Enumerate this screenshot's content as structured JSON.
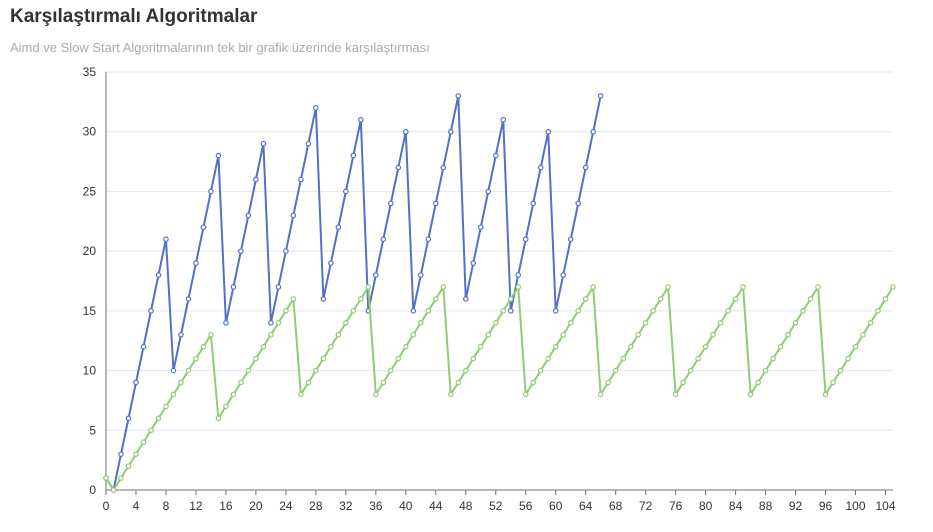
{
  "chart_data": {
    "type": "line",
    "title": "Karşılaştırmalı Algoritmalar",
    "subtitle": "Aimd ve Slow Start Algoritmalarının tek bir grafik üzerinde karşılaştırması",
    "xlabel": "",
    "ylabel": "",
    "xlim": [
      0,
      105
    ],
    "ylim": [
      0,
      35
    ],
    "y_ticks": [
      0,
      5,
      10,
      15,
      20,
      25,
      30,
      35
    ],
    "x_ticks": [
      0,
      4,
      8,
      12,
      16,
      20,
      24,
      28,
      32,
      36,
      40,
      44,
      48,
      52,
      56,
      60,
      64,
      68,
      72,
      76,
      80,
      84,
      88,
      92,
      96,
      100,
      104
    ],
    "grid": true,
    "legend": "none",
    "series": [
      {
        "color": "#5470c6",
        "x": [
          0,
          1,
          2,
          3,
          4,
          5,
          6,
          7,
          8,
          9,
          10,
          11,
          12,
          13,
          14,
          15,
          16,
          17,
          18,
          19,
          20,
          21,
          22,
          23,
          24,
          25,
          26,
          27,
          28,
          29,
          30,
          31,
          32,
          33,
          34,
          35,
          36,
          37,
          38,
          39,
          40,
          41,
          42,
          43,
          44,
          45,
          46,
          47,
          48,
          49,
          50,
          51,
          52,
          53,
          54,
          55,
          56,
          57,
          58,
          59,
          60,
          61,
          62,
          63,
          64,
          65,
          66
        ],
        "values": [
          1,
          0,
          3,
          6,
          9,
          12,
          15,
          18,
          21,
          10,
          13,
          16,
          19,
          22,
          25,
          28,
          14,
          17,
          20,
          23,
          26,
          29,
          14,
          17,
          20,
          23,
          26,
          29,
          32,
          16,
          19,
          22,
          25,
          28,
          31,
          15,
          18,
          21,
          24,
          27,
          30,
          15,
          18,
          21,
          24,
          27,
          30,
          33,
          16,
          19,
          22,
          25,
          28,
          31,
          15,
          18,
          21,
          24,
          27,
          30,
          15,
          18,
          21,
          24,
          27,
          30,
          33
        ]
      },
      {
        "color": "#91cc75",
        "x": [
          0,
          1,
          2,
          3,
          4,
          5,
          6,
          7,
          8,
          9,
          10,
          11,
          12,
          13,
          14,
          15,
          16,
          17,
          18,
          19,
          20,
          21,
          22,
          23,
          24,
          25,
          26,
          27,
          28,
          29,
          30,
          31,
          32,
          33,
          34,
          35,
          36,
          37,
          38,
          39,
          40,
          41,
          42,
          43,
          44,
          45,
          46,
          47,
          48,
          49,
          50,
          51,
          52,
          53,
          54,
          55,
          56,
          57,
          58,
          59,
          60,
          61,
          62,
          63,
          64,
          65,
          66,
          67,
          68,
          69,
          70,
          71,
          72,
          73,
          74,
          75,
          76,
          77,
          78,
          79,
          80,
          81,
          82,
          83,
          84,
          85,
          86,
          87,
          88,
          89,
          90,
          91,
          92,
          93,
          94,
          95,
          96,
          97,
          98,
          99,
          100,
          101,
          102,
          103,
          104,
          105
        ],
        "values": [
          1,
          0,
          1,
          2,
          3,
          4,
          5,
          6,
          7,
          8,
          9,
          10,
          11,
          12,
          13,
          6,
          7,
          8,
          9,
          10,
          11,
          12,
          13,
          14,
          15,
          16,
          8,
          9,
          10,
          11,
          12,
          13,
          14,
          15,
          16,
          17,
          8,
          9,
          10,
          11,
          12,
          13,
          14,
          15,
          16,
          17,
          8,
          9,
          10,
          11,
          12,
          13,
          14,
          15,
          16,
          17,
          8,
          9,
          10,
          11,
          12,
          13,
          14,
          15,
          16,
          17,
          8,
          9,
          10,
          11,
          12,
          13,
          14,
          15,
          16,
          17,
          8,
          9,
          10,
          11,
          12,
          13,
          14,
          15,
          16,
          17,
          8,
          9,
          10,
          11,
          12,
          13,
          14,
          15,
          16,
          17,
          8,
          9,
          10,
          11,
          12,
          13,
          14,
          15,
          16,
          17
        ]
      }
    ]
  }
}
